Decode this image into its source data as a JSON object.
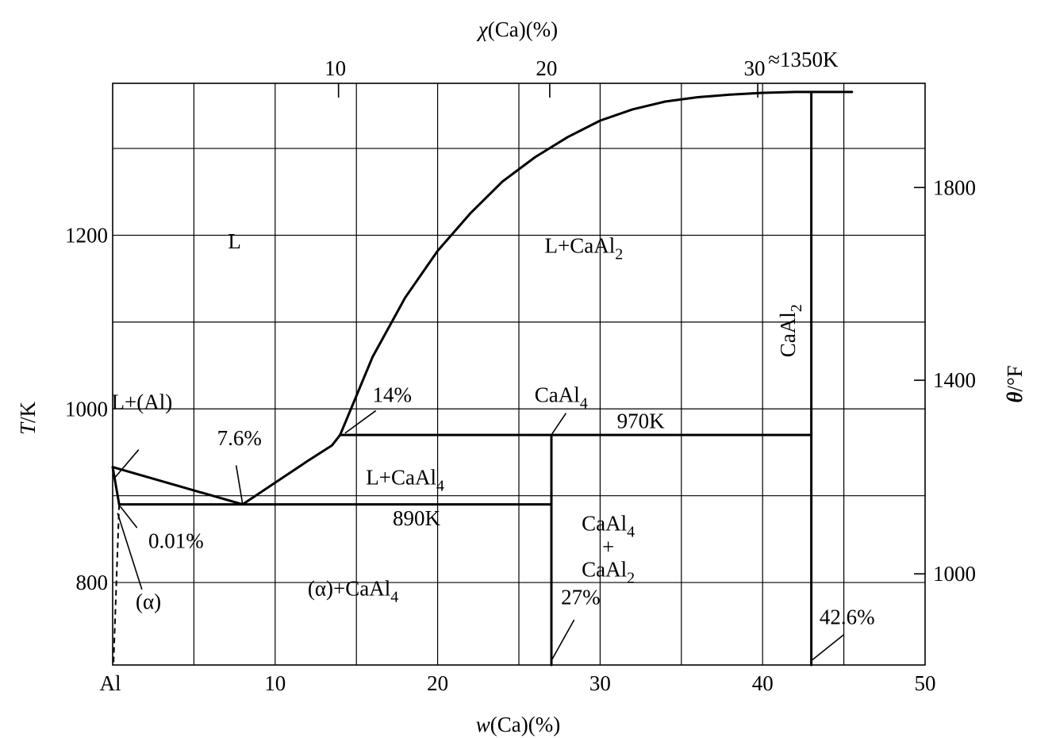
{
  "chart_data": {
    "type": "line",
    "title": "",
    "xlabel": {
      "prefix": "w",
      "rest": "(Ca)(%)"
    },
    "top_xlabel": {
      "prefix": "χ",
      "rest": "(Ca)(%)"
    },
    "ylabel": {
      "prefix": "T",
      "rest": "/K"
    },
    "right_ylabel": {
      "prefix": "θ",
      "rest": "/°F"
    },
    "xlim": [
      0,
      50
    ],
    "ylim": [
      705,
      1375
    ],
    "x_grid": [
      5,
      10,
      15,
      20,
      25,
      30,
      35,
      40,
      45
    ],
    "y_grid": [
      800,
      900,
      1000,
      1100,
      1200,
      1300
    ],
    "x_ticks": [
      {
        "value": 0,
        "label": "Al"
      },
      {
        "value": 10,
        "label": "10"
      },
      {
        "value": 20,
        "label": "20"
      },
      {
        "value": 30,
        "label": "30"
      },
      {
        "value": 40,
        "label": "40"
      },
      {
        "value": 50,
        "label": "50"
      }
    ],
    "y_ticks": [
      {
        "value": 800,
        "label": "800"
      },
      {
        "value": 1000,
        "label": "1000"
      },
      {
        "value": 1200,
        "label": "1200"
      }
    ],
    "top_ticks": [
      {
        "w": 13.9,
        "label": "10"
      },
      {
        "w": 26.9,
        "label": "20"
      },
      {
        "w": 39.7,
        "label": "30"
      }
    ],
    "right_ticks": [
      {
        "k": 810,
        "label": "1000"
      },
      {
        "k": 1033,
        "label": "1400"
      },
      {
        "k": 1255,
        "label": "1800"
      }
    ],
    "series": [
      {
        "name": "liquidus-al-side",
        "style": "solid",
        "points": [
          [
            0,
            933
          ],
          [
            8,
            890
          ]
        ]
      },
      {
        "name": "liquidus-caal4-side",
        "style": "solid",
        "points": [
          [
            8,
            890
          ],
          [
            10,
            915
          ],
          [
            12,
            940
          ],
          [
            13.5,
            958
          ],
          [
            14,
            970
          ]
        ]
      },
      {
        "name": "liquidus-caal2-side",
        "style": "solid",
        "points": [
          [
            14,
            970
          ],
          [
            16,
            1060
          ],
          [
            18,
            1128
          ],
          [
            20,
            1182
          ],
          [
            22,
            1225
          ],
          [
            24,
            1262
          ],
          [
            26,
            1290
          ],
          [
            28,
            1313
          ],
          [
            30,
            1332
          ],
          [
            32,
            1345
          ],
          [
            34,
            1354
          ],
          [
            36,
            1359
          ],
          [
            38,
            1362
          ],
          [
            40,
            1364
          ],
          [
            42,
            1365
          ],
          [
            45.5,
            1365
          ]
        ]
      },
      {
        "name": "eutectic-890K",
        "style": "solid",
        "points": [
          [
            0.4,
            890
          ],
          [
            27,
            890
          ]
        ]
      },
      {
        "name": "peritectic-970K",
        "style": "solid",
        "points": [
          [
            14,
            970
          ],
          [
            43,
            970
          ]
        ]
      },
      {
        "name": "caal4-line",
        "style": "solid",
        "points": [
          [
            27,
            705
          ],
          [
            27,
            970
          ]
        ]
      },
      {
        "name": "caal2-line",
        "style": "solid",
        "points": [
          [
            43,
            705
          ],
          [
            43,
            1365
          ]
        ]
      },
      {
        "name": "solidus-al",
        "style": "solid",
        "points": [
          [
            0,
            933
          ],
          [
            0.4,
            890
          ]
        ]
      },
      {
        "name": "solvus-al",
        "style": "dashed",
        "points": [
          [
            0.4,
            890
          ],
          [
            0.05,
            705
          ]
        ]
      }
    ],
    "annotations": [
      {
        "text": "L",
        "x": 7.5,
        "y": 1185
      },
      {
        "text": "L+CaAl",
        "sub": "2",
        "x": 29,
        "y": 1180
      },
      {
        "text": "L+CaAl",
        "sub": "4",
        "x": 18,
        "y": 913
      },
      {
        "text": "(α)+CaAl",
        "sub": "4",
        "x": 14.8,
        "y": 785
      },
      {
        "text": "L+(Al)",
        "x": 1.8,
        "y": 1000
      },
      {
        "text": "(α)",
        "x": 2.2,
        "y": 770
      },
      {
        "text": "CaAl",
        "sub": "4",
        "x": 30.5,
        "y": 860
      },
      {
        "text": "+",
        "x": 30.5,
        "y": 833
      },
      {
        "text": "CaAl",
        "sub": "2",
        "x": 30.5,
        "y": 807
      },
      {
        "text": "970K",
        "x": 32.5,
        "y": 978
      },
      {
        "text": "890K",
        "x": 18.7,
        "y": 866
      },
      {
        "text": "CaAl",
        "sub": "4",
        "x": 27.6,
        "y": 1008
      },
      {
        "text": "7.6%",
        "x": 7.8,
        "y": 958
      },
      {
        "text": "14%",
        "x": 17.2,
        "y": 1008
      },
      {
        "text": "0.01%",
        "x": 3.9,
        "y": 840
      },
      {
        "text": "27%",
        "x": 28.8,
        "y": 775
      },
      {
        "text": "42.6%",
        "x": 45.2,
        "y": 752
      },
      {
        "text": "≈1350K",
        "x": 42.5,
        "y": 1394
      },
      {
        "text": "CaAl",
        "sub": "2",
        "x": 42.0,
        "y": 1090,
        "rotate": -90
      }
    ]
  }
}
